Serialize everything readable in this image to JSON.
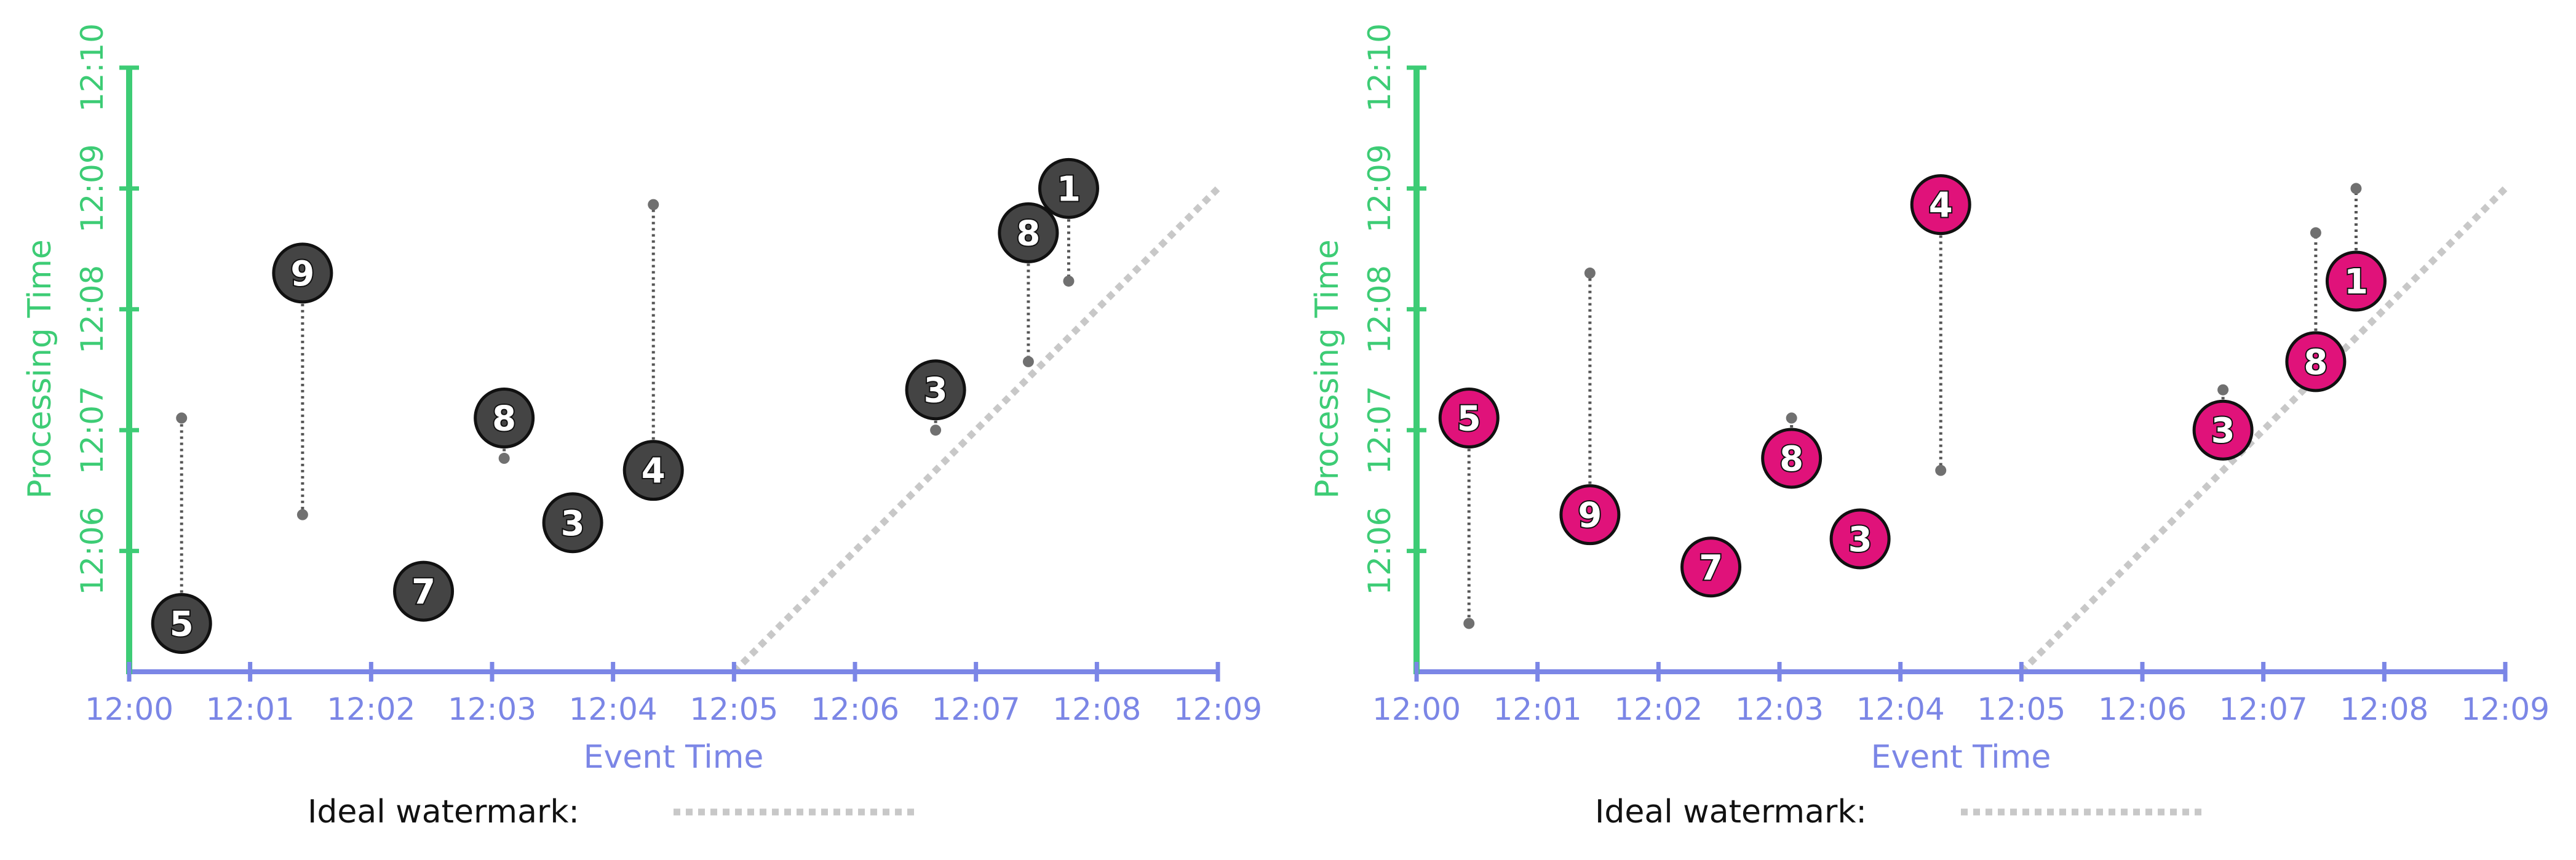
{
  "colors": {
    "y_axis": "#3dcc75",
    "x_axis": "#7b86e6",
    "watermark": "#c8c8c8",
    "connector": "#555555",
    "bubble_dark": "#444444",
    "bubble_pink": "#e0127a",
    "bubble_outline": "#111111"
  },
  "chart_data": [
    {
      "type": "scatter",
      "title": "",
      "xlabel": "Event Time",
      "ylabel": "Processing Time",
      "x_ticks": [
        "12:00",
        "12:01",
        "12:02",
        "12:03",
        "12:04",
        "12:05",
        "12:06",
        "12:07",
        "12:08",
        "12:09"
      ],
      "y_ticks": [
        "12:06",
        "12:07",
        "12:08",
        "12:09",
        "12:10"
      ],
      "xlim": [
        "12:00",
        "12:09"
      ],
      "ylim": [
        "12:05",
        "12:10"
      ],
      "legend_label": "Ideal watermark:",
      "bubble_style": "dark",
      "watermark_line": [
        [
          "12:05:00",
          "12:05:00"
        ],
        [
          "12:09:00",
          "12:09:00"
        ]
      ],
      "points": [
        {
          "label": "5",
          "event_time": "12:00:26",
          "bubble_time": "12:05:24",
          "dot_time": "12:07:06"
        },
        {
          "label": "9",
          "event_time": "12:01:26",
          "bubble_time": "12:08:18",
          "dot_time": "12:06:18"
        },
        {
          "label": "7",
          "event_time": "12:02:26",
          "bubble_time": "12:05:40",
          "dot_time": "12:05:52"
        },
        {
          "label": "8",
          "event_time": "12:03:06",
          "bubble_time": "12:07:06",
          "dot_time": "12:06:46"
        },
        {
          "label": "3",
          "event_time": "12:03:40",
          "bubble_time": "12:06:14",
          "dot_time": ""
        },
        {
          "label": "4",
          "event_time": "12:04:20",
          "bubble_time": "12:06:40",
          "dot_time": "12:08:52"
        },
        {
          "label": "3",
          "event_time": "12:06:40",
          "bubble_time": "12:07:20",
          "dot_time": "12:07:00"
        },
        {
          "label": "8",
          "event_time": "12:07:26",
          "bubble_time": "12:08:38",
          "dot_time": "12:07:34"
        },
        {
          "label": "1",
          "event_time": "12:07:46",
          "bubble_time": "12:09:00",
          "dot_time": "12:08:14"
        }
      ]
    },
    {
      "type": "scatter",
      "title": "",
      "xlabel": "Event Time",
      "ylabel": "Processing Time",
      "x_ticks": [
        "12:00",
        "12:01",
        "12:02",
        "12:03",
        "12:04",
        "12:05",
        "12:06",
        "12:07",
        "12:08",
        "12:09"
      ],
      "y_ticks": [
        "12:06",
        "12:07",
        "12:08",
        "12:09",
        "12:10"
      ],
      "xlim": [
        "12:00",
        "12:09"
      ],
      "ylim": [
        "12:05",
        "12:10"
      ],
      "legend_label": "Ideal watermark:",
      "bubble_style": "pink",
      "watermark_line": [
        [
          "12:05:00",
          "12:05:00"
        ],
        [
          "12:09:00",
          "12:09:00"
        ]
      ],
      "points": [
        {
          "label": "5",
          "event_time": "12:00:26",
          "bubble_time": "12:07:06",
          "dot_time": "12:05:24"
        },
        {
          "label": "9",
          "event_time": "12:01:26",
          "bubble_time": "12:06:18",
          "dot_time": "12:08:18"
        },
        {
          "label": "7",
          "event_time": "12:02:26",
          "bubble_time": "12:05:52",
          "dot_time": "12:05:40"
        },
        {
          "label": "8",
          "event_time": "12:03:06",
          "bubble_time": "12:06:46",
          "dot_time": "12:07:06"
        },
        {
          "label": "3",
          "event_time": "12:03:40",
          "bubble_time": "12:06:06",
          "dot_time": ""
        },
        {
          "label": "4",
          "event_time": "12:04:20",
          "bubble_time": "12:08:52",
          "dot_time": "12:06:40"
        },
        {
          "label": "3",
          "event_time": "12:06:40",
          "bubble_time": "12:07:00",
          "dot_time": "12:07:20"
        },
        {
          "label": "8",
          "event_time": "12:07:26",
          "bubble_time": "12:07:34",
          "dot_time": "12:08:38"
        },
        {
          "label": "1",
          "event_time": "12:07:46",
          "bubble_time": "12:08:14",
          "dot_time": "12:09:00"
        }
      ]
    }
  ]
}
